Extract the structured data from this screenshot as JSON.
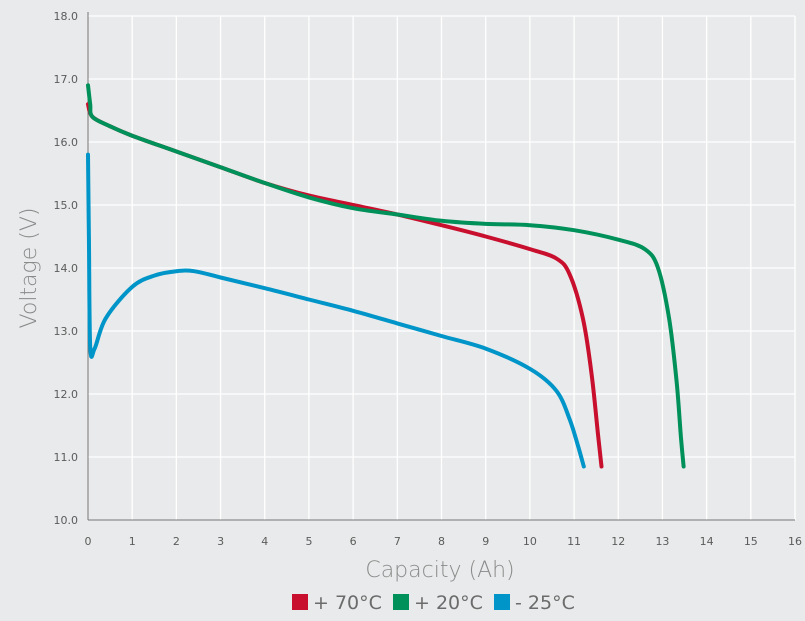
{
  "chart_data": {
    "type": "line",
    "xlabel": "Capacity (Ah)",
    "ylabel": "Voltage (V)",
    "xlim": [
      0,
      16
    ],
    "ylim": [
      10.0,
      18.0
    ],
    "x_ticks": [
      "0",
      "1",
      "2",
      "3",
      "4",
      "5",
      "6",
      "7",
      "8",
      "9",
      "10",
      "11",
      "12",
      "13",
      "14",
      "15",
      "16"
    ],
    "y_ticks": [
      "10.0",
      "11.0",
      "12.0",
      "13.0",
      "14.0",
      "15.0",
      "16.0",
      "17.0",
      "18.0"
    ],
    "grid": true,
    "legend_position": "bottom-center",
    "series": [
      {
        "name": "+ 70°C",
        "color": "#c8102e",
        "points": [
          [
            0,
            16.6
          ],
          [
            0.1,
            16.4
          ],
          [
            0.5,
            16.25
          ],
          [
            1,
            16.1
          ],
          [
            2,
            15.85
          ],
          [
            3,
            15.6
          ],
          [
            4,
            15.35
          ],
          [
            5,
            15.15
          ],
          [
            6,
            15.0
          ],
          [
            7,
            14.85
          ],
          [
            8,
            14.68
          ],
          [
            9,
            14.5
          ],
          [
            10,
            14.3
          ],
          [
            10.6,
            14.15
          ],
          [
            10.9,
            13.9
          ],
          [
            11.2,
            13.2
          ],
          [
            11.4,
            12.3
          ],
          [
            11.55,
            11.3
          ],
          [
            11.62,
            10.85
          ]
        ]
      },
      {
        "name": "+ 20°C",
        "color": "#00915a",
        "points": [
          [
            0,
            16.9
          ],
          [
            0.05,
            16.6
          ],
          [
            0.1,
            16.4
          ],
          [
            0.5,
            16.25
          ],
          [
            1,
            16.1
          ],
          [
            2,
            15.85
          ],
          [
            3,
            15.6
          ],
          [
            4,
            15.35
          ],
          [
            5,
            15.12
          ],
          [
            6,
            14.95
          ],
          [
            7,
            14.85
          ],
          [
            8,
            14.75
          ],
          [
            9,
            14.7
          ],
          [
            10,
            14.68
          ],
          [
            11,
            14.6
          ],
          [
            12,
            14.45
          ],
          [
            12.6,
            14.3
          ],
          [
            12.9,
            14.0
          ],
          [
            13.15,
            13.2
          ],
          [
            13.32,
            12.2
          ],
          [
            13.42,
            11.3
          ],
          [
            13.48,
            10.85
          ]
        ]
      },
      {
        "name": "- 25°C",
        "color": "#0095c8",
        "points": [
          [
            0,
            15.8
          ],
          [
            0.02,
            14.5
          ],
          [
            0.05,
            12.75
          ],
          [
            0.15,
            12.72
          ],
          [
            0.4,
            13.2
          ],
          [
            1,
            13.7
          ],
          [
            1.5,
            13.88
          ],
          [
            2,
            13.95
          ],
          [
            2.4,
            13.95
          ],
          [
            3,
            13.85
          ],
          [
            4,
            13.68
          ],
          [
            5,
            13.5
          ],
          [
            6,
            13.32
          ],
          [
            7,
            13.12
          ],
          [
            8,
            12.92
          ],
          [
            9,
            12.72
          ],
          [
            10,
            12.4
          ],
          [
            10.6,
            12.05
          ],
          [
            10.9,
            11.6
          ],
          [
            11.1,
            11.15
          ],
          [
            11.22,
            10.85
          ]
        ]
      }
    ]
  }
}
